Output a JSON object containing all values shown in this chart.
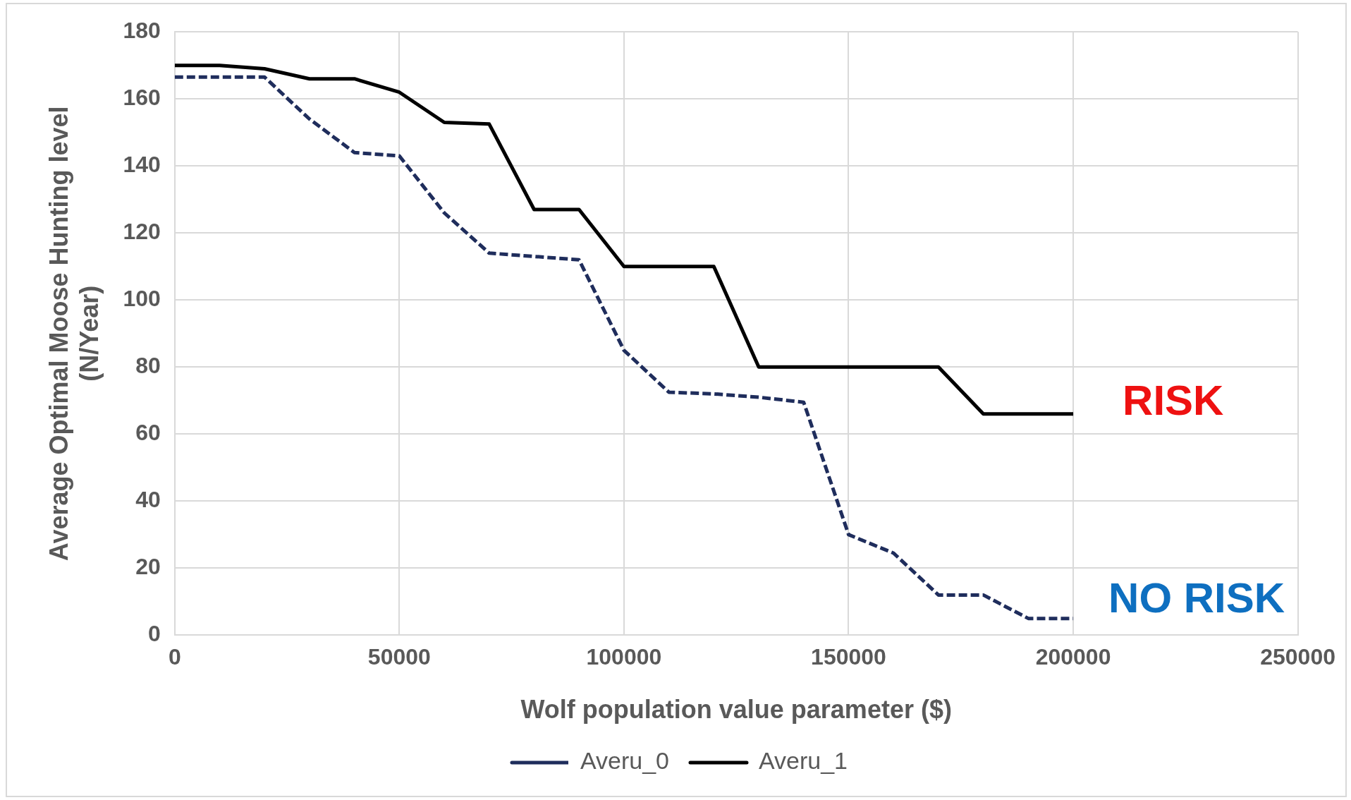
{
  "chart_data": {
    "type": "line",
    "xlabel": "Wolf population value parameter ($)",
    "ylabel": "Average Optimal Moose Hunting level (N/Year)",
    "x": [
      0,
      10000,
      20000,
      30000,
      40000,
      50000,
      60000,
      70000,
      80000,
      90000,
      100000,
      110000,
      120000,
      130000,
      140000,
      150000,
      160000,
      170000,
      180000,
      190000,
      200000
    ],
    "series": [
      {
        "name": "Averu_0",
        "color": "#1f2d5c",
        "line_style": "dashed",
        "values": [
          166.5,
          166.5,
          166.5,
          154,
          144,
          143,
          126,
          114,
          113,
          112,
          85,
          72.5,
          72,
          71,
          69.5,
          30,
          24.5,
          12,
          12,
          5,
          5
        ]
      },
      {
        "name": "Averu_1",
        "color": "#000000",
        "line_style": "solid",
        "values": [
          170,
          170,
          169,
          166,
          166,
          162,
          153,
          152.5,
          127,
          127,
          110,
          110,
          110,
          80,
          80,
          80,
          80,
          80,
          66,
          66,
          66
        ]
      }
    ],
    "xlim": [
      0,
      250000
    ],
    "xticks": [
      0,
      50000,
      100000,
      150000,
      200000,
      250000
    ],
    "ylim": [
      0,
      180
    ],
    "yticks": [
      0,
      20,
      40,
      60,
      80,
      100,
      120,
      140,
      160,
      180
    ],
    "grid": true,
    "legend": "bottom",
    "marker": "none",
    "annotations": [
      "RISK",
      "NO RISK"
    ]
  }
}
